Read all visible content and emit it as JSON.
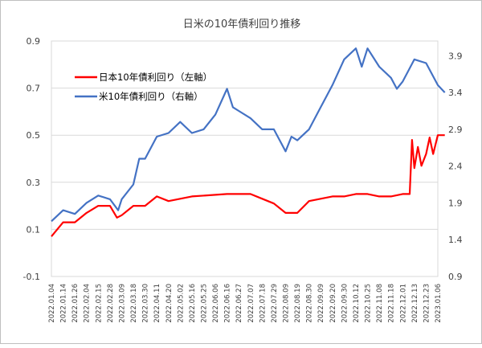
{
  "chart_data": {
    "type": "line",
    "title": "日米の10年債利回り推移",
    "left_axis": {
      "min": -0.1,
      "max": 0.9,
      "ticks": [
        "0.9",
        "0.7",
        "0.5",
        "0.3",
        "0.1",
        "-0.1"
      ],
      "tick_values": [
        0.9,
        0.7,
        0.5,
        0.3,
        0.1,
        -0.1
      ]
    },
    "right_axis": {
      "min": 0.9,
      "max": 4.1,
      "ticks": [
        "3.9",
        "3.4",
        "2.9",
        "2.4",
        "1.9",
        "1.4",
        "0.9"
      ],
      "tick_values": [
        3.9,
        3.4,
        2.9,
        2.4,
        1.9,
        1.4,
        0.9
      ]
    },
    "gridlines": "horizontal",
    "legend_position": "top-left",
    "x_tick_labels": [
      "2022.01.04",
      "2022.01.14",
      "2022.01.26",
      "2022.02.04",
      "2022.02.15",
      "2022.02.28",
      "2022.03.09",
      "2022.03.18",
      "2022.03.30",
      "2022.04.11",
      "2022.04.20",
      "2022.05.02",
      "2022.05.16",
      "2022.05.25",
      "2022.06.06",
      "2022.06.16",
      "2022.06.27",
      "2022.07.07",
      "2022.07.18",
      "2022.07.29",
      "2022.08.09",
      "2022.08.19",
      "2022.08.30",
      "2022.09.09",
      "2022.09.20",
      "2022.09.30",
      "2022.10.12",
      "2022.10.25",
      "2022.11.08",
      "2022.11.18",
      "2022.12.01",
      "2022.12.13",
      "2022.12.23",
      "2023.01.06"
    ],
    "series": [
      {
        "name": "日本10年債利回り（左軸）",
        "axis": "left",
        "color": "#ff0000",
        "x": [
          0,
          1,
          2,
          3,
          4,
          5,
          5.6,
          6,
          7,
          8,
          9,
          10,
          12,
          15,
          16,
          17,
          18,
          19,
          20,
          21,
          22,
          23,
          24,
          25,
          26,
          27,
          28,
          29,
          30,
          30.6,
          30.8,
          31,
          31.3,
          31.6,
          32,
          32.3,
          32.6,
          33,
          33.6
        ],
        "values": [
          0.07,
          0.13,
          0.13,
          0.17,
          0.2,
          0.2,
          0.15,
          0.16,
          0.2,
          0.2,
          0.24,
          0.22,
          0.24,
          0.25,
          0.25,
          0.25,
          0.23,
          0.21,
          0.17,
          0.17,
          0.22,
          0.23,
          0.24,
          0.24,
          0.25,
          0.25,
          0.24,
          0.24,
          0.25,
          0.25,
          0.48,
          0.36,
          0.45,
          0.37,
          0.42,
          0.49,
          0.42,
          0.5,
          0.5
        ]
      },
      {
        "name": "米10年債利回り（右軸）",
        "axis": "right",
        "color": "#4472c4",
        "x": [
          0,
          1,
          2,
          3,
          4,
          5,
          5.7,
          6,
          7,
          7.5,
          8,
          9,
          10,
          11,
          12,
          13,
          14,
          15,
          15.5,
          16,
          17,
          18,
          19,
          19.5,
          20,
          20.5,
          21,
          22,
          23,
          24,
          25,
          26,
          26.5,
          27,
          28,
          29,
          29.5,
          30,
          31,
          32,
          33,
          33.6
        ],
        "values": [
          1.65,
          1.8,
          1.75,
          1.9,
          2.0,
          1.95,
          1.8,
          1.95,
          2.15,
          2.5,
          2.5,
          2.8,
          2.85,
          3.0,
          2.85,
          2.9,
          3.1,
          3.45,
          3.2,
          3.15,
          3.05,
          2.9,
          2.9,
          2.75,
          2.6,
          2.8,
          2.75,
          2.9,
          3.2,
          3.5,
          3.85,
          4.0,
          3.75,
          4.0,
          3.75,
          3.6,
          3.45,
          3.55,
          3.85,
          3.8,
          3.5,
          3.4
        ]
      }
    ]
  }
}
